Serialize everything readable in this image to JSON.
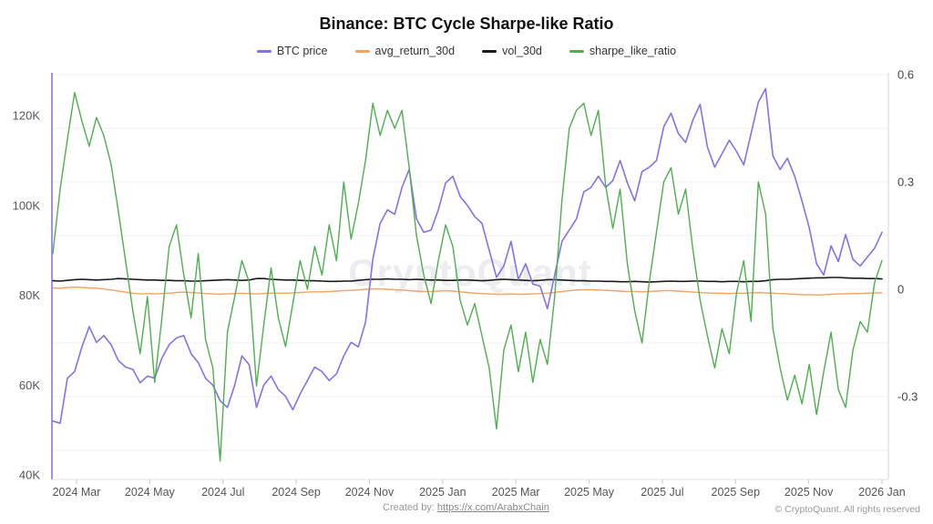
{
  "title": "Binance: BTC Cycle Sharpe-like Ratio",
  "watermark": "CryptoQuant",
  "footer": {
    "created_by_prefix": "Created by: ",
    "created_by_link": "https://x.com/ArabxChain",
    "copyright": "© CryptoQuant. All rights reserved"
  },
  "colors": {
    "btc_price": "#8273e6",
    "avg_return_30d": "#f4a460",
    "vol_30d": "#1a1a1a",
    "sharpe_like_ratio": "#4fae50",
    "left_axis_line": "#a090ee",
    "right_axis_line": "#d4d4dc",
    "grid_line": "#f2f2f6",
    "tick_text": "#555555",
    "watermark_text": "#8c93a6"
  },
  "chart_data": {
    "type": "line",
    "title": "Binance: BTC Cycle Sharpe-like Ratio",
    "legend_position": "top",
    "grid": true,
    "x_axis": {
      "tick_labels": [
        "2024 Mar",
        "2024 May",
        "2024 Jul",
        "2024 Sep",
        "2024 Nov",
        "2025 Jan",
        "2025 Mar",
        "2025 May",
        "2025 Jul",
        "2025 Sep",
        "2025 Nov",
        "2026 Jan"
      ],
      "range": [
        "2024 Feb",
        "2026 Jan"
      ]
    },
    "y_axis_left": {
      "applies_to": "BTC price",
      "unit": "USD thousands",
      "tick_labels": [
        "120K",
        "100K",
        "80K",
        "60K",
        "40K"
      ],
      "tick_values_k": [
        120,
        100,
        80,
        60,
        40
      ]
    },
    "y_axis_right": {
      "applies_to": "avg_return_30d, vol_30d, sharpe_like_ratio",
      "tick_labels": [
        "0.6",
        "0.3",
        "0",
        "-0.3"
      ],
      "tick_values": [
        0.6,
        0.3,
        0,
        -0.3
      ]
    },
    "sampling_note": "values sampled approximately weekly from Feb 2024 to Jan 2026, evenly spaced",
    "series": [
      {
        "name": "BTC price",
        "axis": "left",
        "color": "#8273e6",
        "values": [
          52,
          51.5,
          61.5,
          63,
          68.5,
          73,
          69.5,
          71,
          69,
          65.5,
          64,
          63.5,
          60.5,
          62,
          61.5,
          66,
          69,
          70.5,
          71,
          67,
          65,
          61.5,
          60,
          56.5,
          55,
          60,
          66.5,
          64.5,
          55,
          60,
          62,
          59,
          57.5,
          54.5,
          58,
          61,
          64,
          63,
          61,
          62.5,
          66.5,
          69.5,
          68.5,
          74,
          88,
          96,
          99,
          98,
          104,
          108,
          97,
          94,
          94.5,
          99,
          105,
          106.5,
          102,
          100,
          97.5,
          96,
          90,
          84,
          86.5,
          92,
          83.5,
          87,
          82.5,
          82,
          77,
          84.5,
          92,
          94.5,
          97,
          103,
          104,
          106.5,
          104,
          105.5,
          110,
          105,
          101,
          107.5,
          108.5,
          110,
          117.5,
          120.5,
          116,
          114,
          119,
          122.5,
          113,
          108.5,
          111.5,
          114.5,
          112,
          109,
          116,
          123,
          126,
          111,
          108,
          110.5,
          106.5,
          101,
          95,
          87,
          84.5,
          91,
          87.5,
          93.5,
          88,
          86.5,
          88.5,
          90.5,
          94
        ]
      },
      {
        "name": "avg_return_30d",
        "axis": "right",
        "color": "#f4a460",
        "values": [
          0.004,
          0.003,
          0.005,
          0.006,
          0.005,
          0.004,
          0.003,
          0.001,
          -0.002,
          -0.005,
          -0.008,
          -0.011,
          -0.013,
          -0.012,
          -0.013,
          -0.012,
          -0.011,
          -0.009,
          -0.008,
          -0.009,
          -0.01,
          -0.012,
          -0.013,
          -0.014,
          -0.013,
          -0.012,
          -0.011,
          -0.012,
          -0.013,
          -0.012,
          -0.011,
          -0.011,
          -0.011,
          -0.01,
          -0.009,
          -0.008,
          -0.007,
          -0.007,
          -0.006,
          -0.005,
          -0.004,
          -0.003,
          -0.002,
          0,
          0.001,
          0.001,
          0,
          -0.001,
          -0.002,
          -0.004,
          -0.005,
          -0.006,
          -0.006,
          -0.005,
          -0.004,
          -0.005,
          -0.007,
          -0.009,
          -0.011,
          -0.012,
          -0.013,
          -0.014,
          -0.014,
          -0.013,
          -0.014,
          -0.014,
          -0.013,
          -0.012,
          -0.011,
          -0.009,
          -0.006,
          -0.004,
          -0.002,
          -0.001,
          -0.001,
          -0.002,
          -0.003,
          -0.004,
          -0.005,
          -0.006,
          -0.006,
          -0.007,
          -0.006,
          -0.005,
          -0.004,
          -0.004,
          -0.005,
          -0.006,
          -0.008,
          -0.009,
          -0.01,
          -0.011,
          -0.011,
          -0.012,
          -0.011,
          -0.011,
          -0.01,
          -0.009,
          -0.01,
          -0.011,
          -0.012,
          -0.013,
          -0.014,
          -0.015,
          -0.015,
          -0.016,
          -0.015,
          -0.014,
          -0.013,
          -0.013,
          -0.012,
          -0.012,
          -0.011,
          -0.01,
          -0.01
        ]
      },
      {
        "name": "vol_30d",
        "axis": "right",
        "color": "#1a1a1a",
        "values": [
          0.024,
          0.023,
          0.025,
          0.027,
          0.028,
          0.027,
          0.026,
          0.027,
          0.028,
          0.03,
          0.029,
          0.028,
          0.027,
          0.026,
          0.026,
          0.025,
          0.025,
          0.024,
          0.024,
          0.023,
          0.023,
          0.024,
          0.025,
          0.026,
          0.027,
          0.026,
          0.025,
          0.026,
          0.03,
          0.03,
          0.028,
          0.027,
          0.026,
          0.026,
          0.025,
          0.024,
          0.024,
          0.023,
          0.022,
          0.022,
          0.023,
          0.023,
          0.025,
          0.027,
          0.028,
          0.028,
          0.029,
          0.028,
          0.028,
          0.027,
          0.028,
          0.027,
          0.026,
          0.026,
          0.025,
          0.025,
          0.026,
          0.026,
          0.025,
          0.024,
          0.025,
          0.027,
          0.028,
          0.027,
          0.026,
          0.025,
          0.024,
          0.025,
          0.027,
          0.027,
          0.026,
          0.025,
          0.024,
          0.024,
          0.023,
          0.023,
          0.022,
          0.022,
          0.021,
          0.021,
          0.022,
          0.021,
          0.02,
          0.021,
          0.022,
          0.023,
          0.022,
          0.022,
          0.023,
          0.023,
          0.022,
          0.022,
          0.021,
          0.022,
          0.022,
          0.021,
          0.022,
          0.022,
          0.024,
          0.027,
          0.028,
          0.028,
          0.029,
          0.03,
          0.031,
          0.032,
          0.032,
          0.033,
          0.033,
          0.032,
          0.031,
          0.031,
          0.03,
          0.03,
          0.029
        ]
      },
      {
        "name": "sharpe_like_ratio",
        "axis": "right",
        "color": "#4fae50",
        "values": [
          0.1,
          0.28,
          0.42,
          0.55,
          0.47,
          0.4,
          0.48,
          0.43,
          0.35,
          0.22,
          0.08,
          -0.06,
          -0.18,
          -0.02,
          -0.26,
          -0.08,
          0.12,
          0.18,
          0.04,
          -0.08,
          0.1,
          -0.14,
          -0.22,
          -0.48,
          -0.12,
          -0.02,
          0.08,
          0.02,
          -0.27,
          -0.1,
          0.06,
          -0.08,
          -0.16,
          -0.04,
          0.08,
          0,
          0.12,
          0.04,
          0.18,
          0.08,
          0.3,
          0.14,
          0.24,
          0.36,
          0.52,
          0.43,
          0.5,
          0.45,
          0.5,
          0.34,
          0.15,
          0.04,
          -0.04,
          0.08,
          0.18,
          0.12,
          -0.03,
          -0.1,
          -0.04,
          -0.13,
          -0.22,
          -0.39,
          -0.17,
          -0.1,
          -0.23,
          -0.12,
          -0.26,
          -0.14,
          -0.21,
          -0.02,
          0.25,
          0.45,
          0.5,
          0.52,
          0.43,
          0.5,
          0.29,
          0.17,
          0.28,
          0.07,
          -0.06,
          -0.15,
          0.02,
          0.16,
          0.3,
          0.34,
          0.21,
          0.28,
          0.11,
          -0.03,
          -0.13,
          -0.22,
          -0.11,
          -0.18,
          -0.01,
          0.08,
          -0.09,
          0.3,
          0.21,
          -0.11,
          -0.22,
          -0.31,
          -0.24,
          -0.32,
          -0.21,
          -0.35,
          -0.23,
          -0.12,
          -0.28,
          -0.33,
          -0.17,
          -0.09,
          -0.12,
          0.02,
          0.08
        ]
      }
    ]
  }
}
